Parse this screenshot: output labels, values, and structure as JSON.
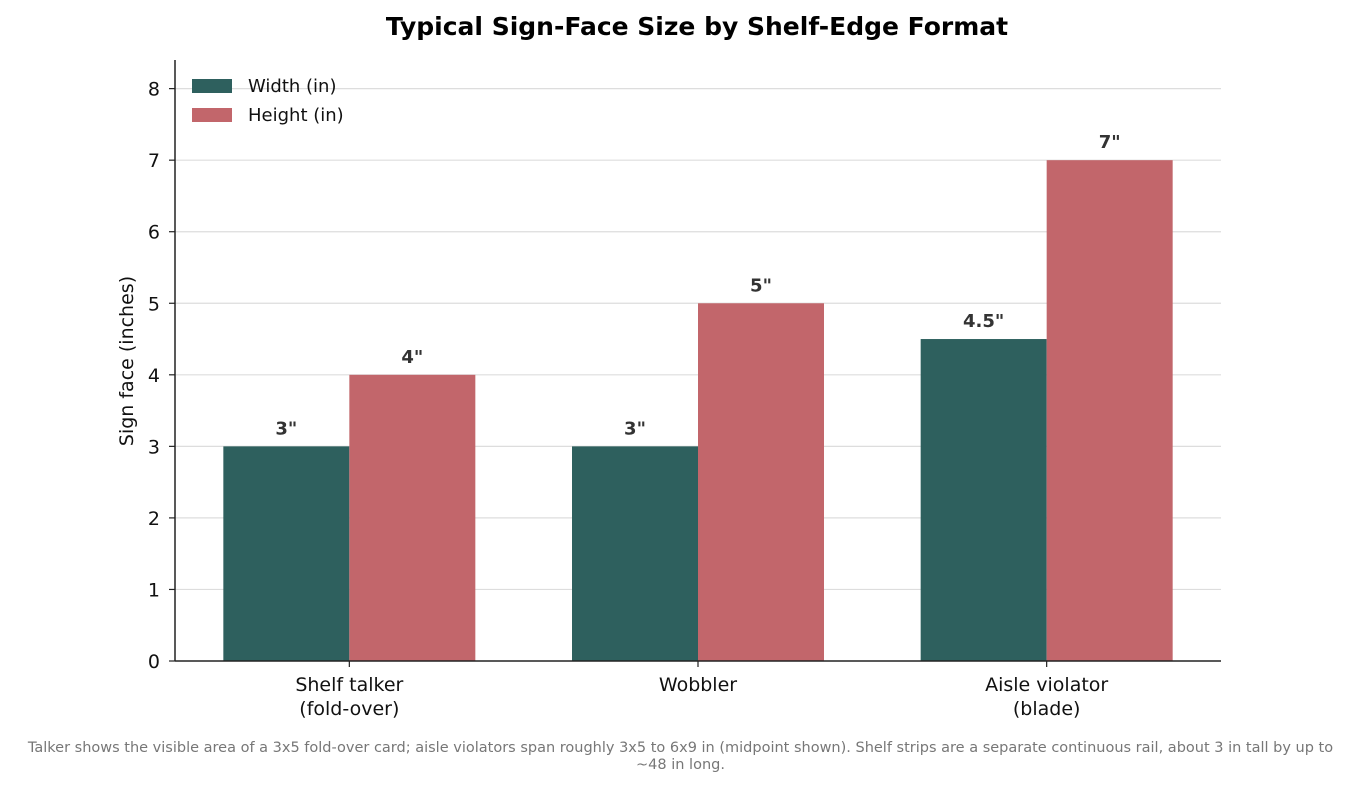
{
  "chart_data": {
    "type": "bar",
    "title": "Typical Sign-Face Size by Shelf-Edge Format",
    "xlabel": "",
    "ylabel": "Sign face (inches)",
    "categories": [
      [
        "Shelf talker",
        "(fold-over)"
      ],
      [
        "Wobbler"
      ],
      [
        "Aisle violator",
        "(blade)"
      ]
    ],
    "series": [
      {
        "name": "Width (in)",
        "color": "#2e605e",
        "values": [
          3,
          3,
          4.5
        ],
        "labels": [
          "3\"",
          "3\"",
          "4.5\""
        ]
      },
      {
        "name": "Height (in)",
        "color": "#c2666b",
        "values": [
          4,
          5,
          7
        ],
        "labels": [
          "4\"",
          "5\"",
          "7\""
        ]
      }
    ],
    "ylim": [
      0,
      8.4
    ],
    "yticks": [
      0,
      1,
      2,
      3,
      4,
      5,
      6,
      7,
      8
    ],
    "grid": true,
    "legend": "top-left",
    "footnote": "Talker shows the visible area of a 3x5 fold-over card; aisle violators span roughly 3x5 to 6x9 in (midpoint shown). Shelf strips are a separate continuous rail, about 3 in tall by up to ~48 in long."
  }
}
